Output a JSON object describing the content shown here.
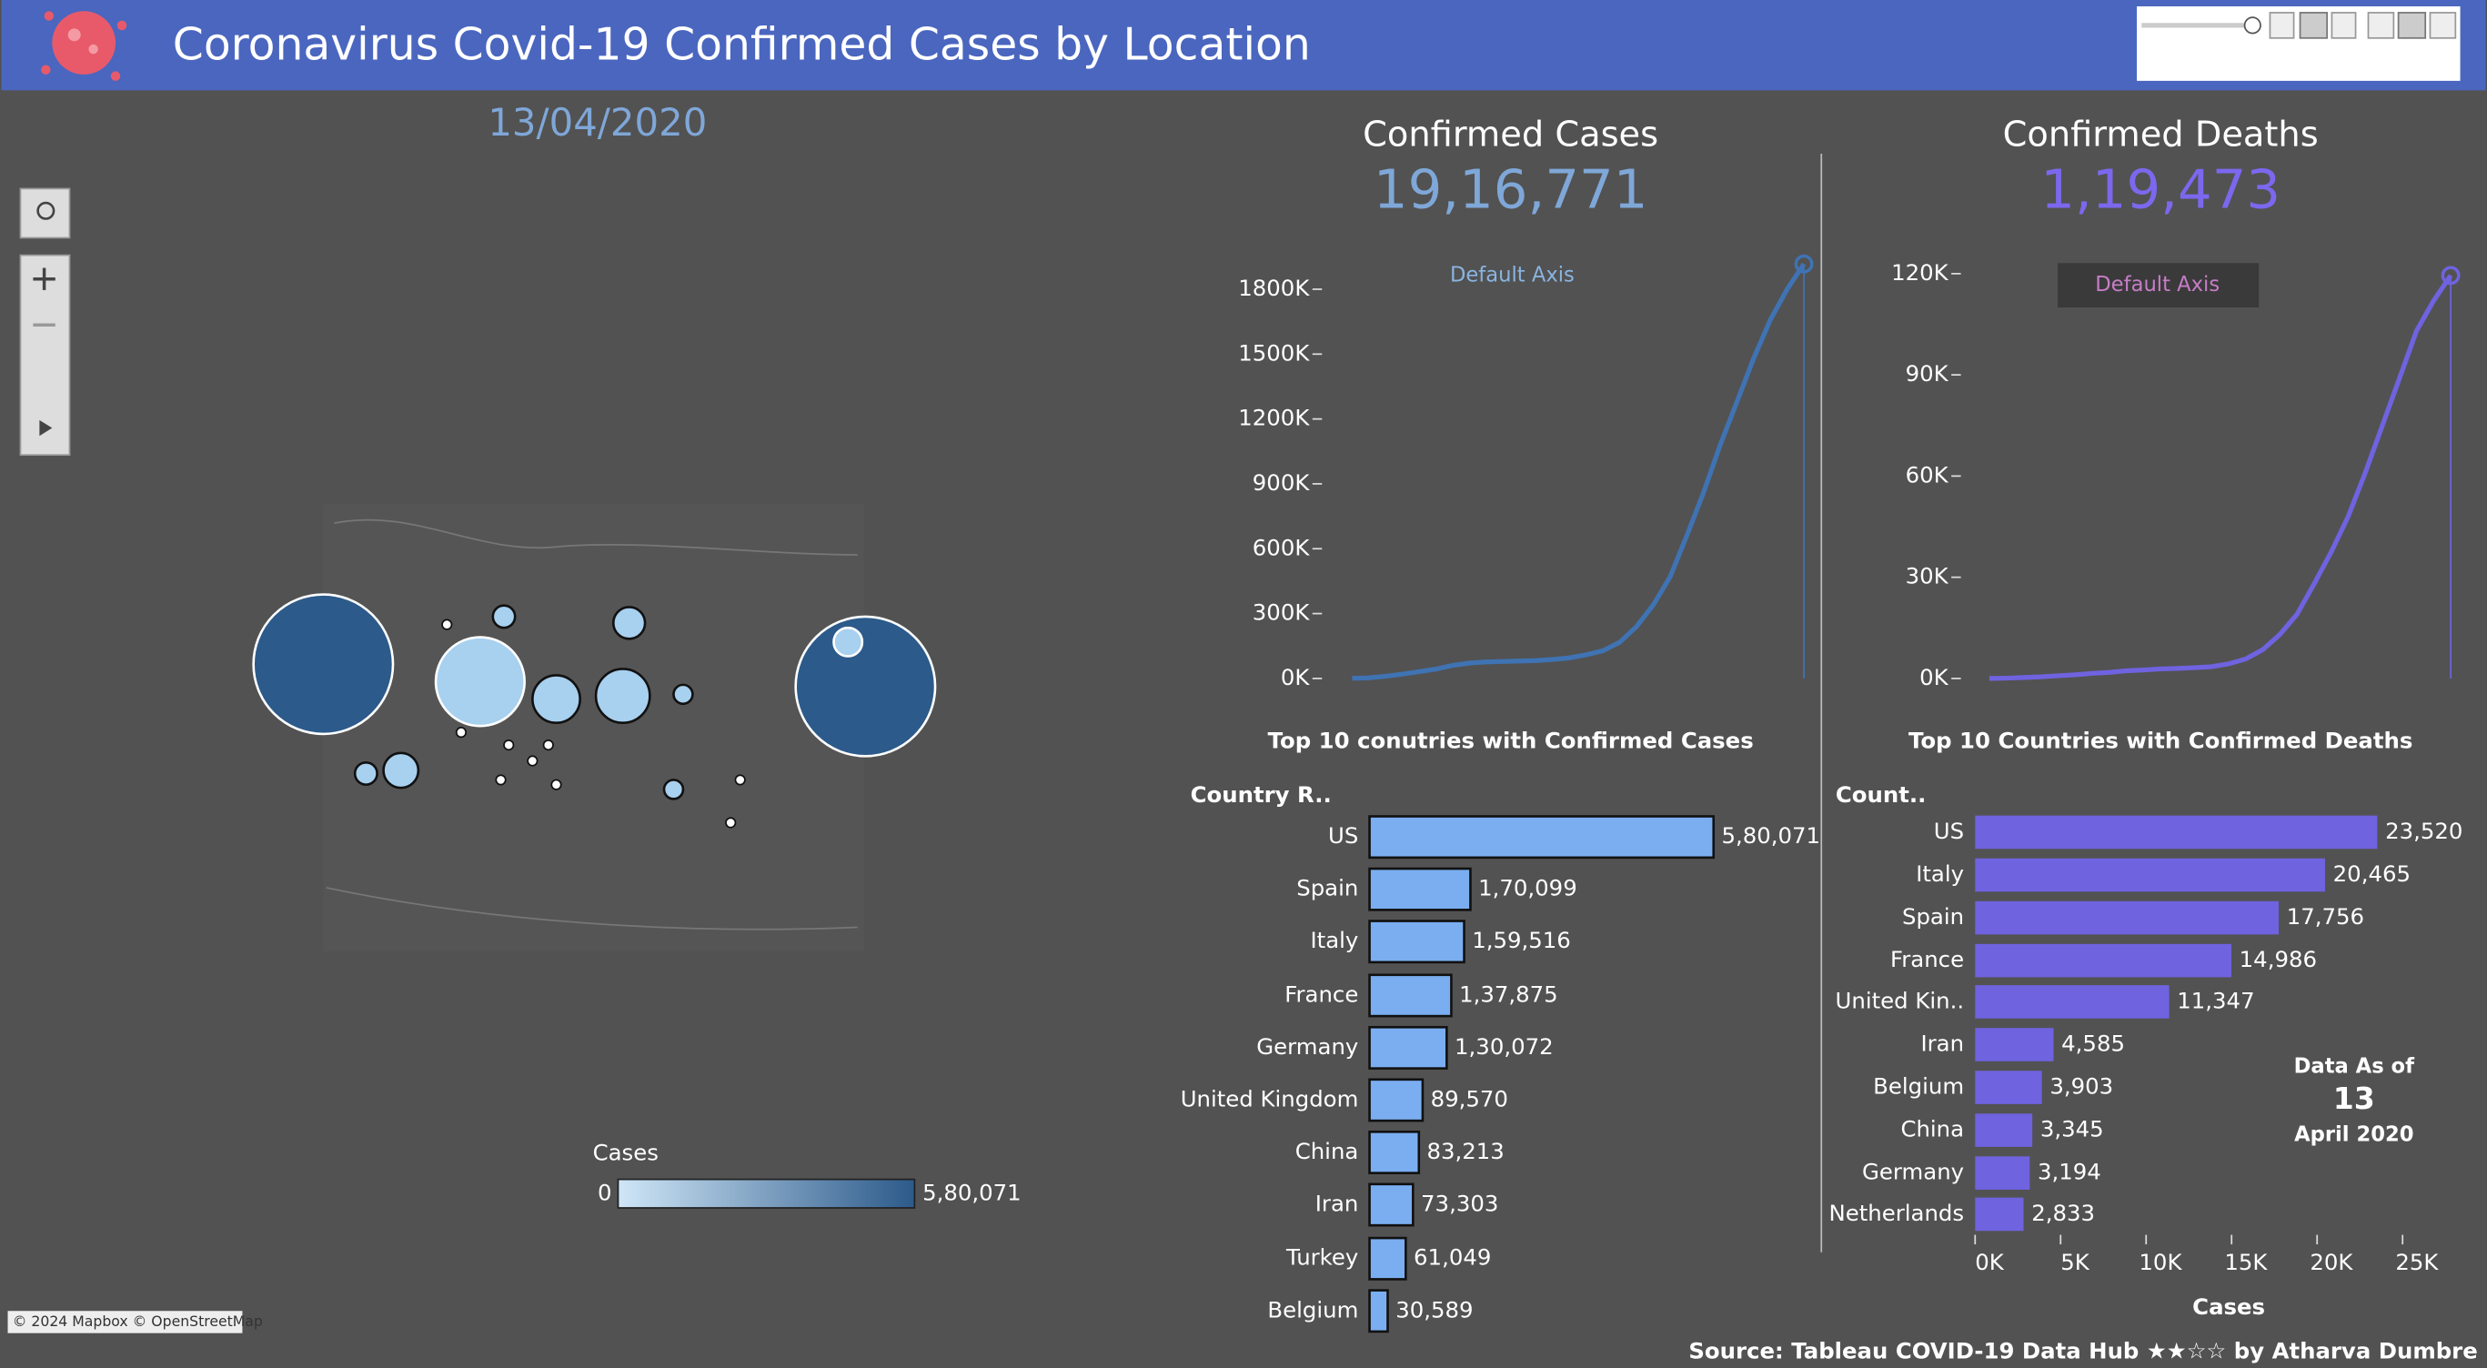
{
  "header": {
    "title": "Coronavirus Covid-19 Confirmed Cases by Location"
  },
  "date": "13/04/2020",
  "map": {
    "legend_title": "Cases",
    "legend_labels": [
      "0",
      "5,80,071"
    ],
    "attribution": "© 2024 Mapbox © OpenStreetMap"
  },
  "chart_data": [
    {
      "type": "line",
      "title": "Confirmed Cases",
      "subtitle": "19,16,771",
      "annotation": "Default Axis",
      "color": "#3f73b3",
      "values": [
        555,
        2900,
        9900,
        20000,
        31500,
        43000,
        60000,
        71000,
        76000,
        78600,
        80400,
        83000,
        88000,
        95000,
        110000,
        128000,
        168000,
        240000,
        340000,
        470000,
        660000,
        860000,
        1080000,
        1280000,
        1480000,
        1660000,
        1800000,
        1916771
      ],
      "ylim": [
        0,
        1950000
      ],
      "yticks": [
        {
          "value": 0,
          "label": "0K"
        },
        {
          "value": 300000,
          "label": "300K"
        },
        {
          "value": 600000,
          "label": "600K"
        },
        {
          "value": 900000,
          "label": "900K"
        },
        {
          "value": 1200000,
          "label": "1200K"
        },
        {
          "value": 1500000,
          "label": "1500K"
        },
        {
          "value": 1800000,
          "label": "1800K"
        }
      ]
    },
    {
      "type": "line",
      "title": "Confirmed Deaths",
      "subtitle": "1,19,473",
      "annotation": "Default Axis",
      "color": "#6f63e0",
      "values": [
        17,
        80,
        260,
        490,
        810,
        1100,
        1500,
        1800,
        2250,
        2500,
        2800,
        2950,
        3200,
        3500,
        4300,
        5800,
        8500,
        13000,
        19000,
        28000,
        37500,
        48000,
        61000,
        75000,
        89000,
        103000,
        112000,
        119473
      ],
      "ylim": [
        0,
        125000
      ],
      "yticks": [
        {
          "value": 0,
          "label": "0K"
        },
        {
          "value": 30000,
          "label": "30K"
        },
        {
          "value": 60000,
          "label": "60K"
        },
        {
          "value": 90000,
          "label": "90K"
        },
        {
          "value": 120000,
          "label": "120K"
        }
      ]
    },
    {
      "type": "bar",
      "title": "Top 10 conutries with Confirmed Cases",
      "y_label": "Country R..",
      "color": "#7aaef0",
      "categories": [
        "US",
        "Spain",
        "Italy",
        "France",
        "Germany",
        "United Kingdom",
        "China",
        "Iran",
        "Turkey",
        "Belgium"
      ],
      "values": [
        580071,
        170099,
        159516,
        137875,
        130072,
        89570,
        83213,
        73303,
        61049,
        30589
      ],
      "value_labels": [
        "5,80,071",
        "1,70,099",
        "1,59,516",
        "1,37,875",
        "1,30,072",
        "89,570",
        "83,213",
        "73,303",
        "61,049",
        "30,589"
      ]
    },
    {
      "type": "bar",
      "title": "Top 10 Countries with Confirmed Deaths",
      "y_label": "Count..",
      "x_label": "Cases",
      "color": "#6f63e0",
      "categories": [
        "US",
        "Italy",
        "Spain",
        "France",
        "United Kin..",
        "Iran",
        "Belgium",
        "China",
        "Germany",
        "Netherlands"
      ],
      "values": [
        23520,
        20465,
        17756,
        14986,
        11347,
        4585,
        3903,
        3345,
        3194,
        2833
      ],
      "value_labels": [
        "23,520",
        "20,465",
        "17,756",
        "14,986",
        "11,347",
        "4,585",
        "3,903",
        "3,345",
        "3,194",
        "2,833"
      ],
      "xlim": [
        0,
        28000
      ],
      "xticks": [
        {
          "value": 0,
          "label": "0K"
        },
        {
          "value": 5000,
          "label": "5K"
        },
        {
          "value": 10000,
          "label": "10K"
        },
        {
          "value": 15000,
          "label": "15K"
        },
        {
          "value": 20000,
          "label": "20K"
        },
        {
          "value": 25000,
          "label": "25K"
        }
      ]
    }
  ],
  "note": {
    "label": "Data As of",
    "day": "13",
    "month": "April 2020"
  },
  "footer": {
    "source": "Source: Tableau COVID-19 Data Hub ★★☆☆ by Atharva Dumbre"
  }
}
